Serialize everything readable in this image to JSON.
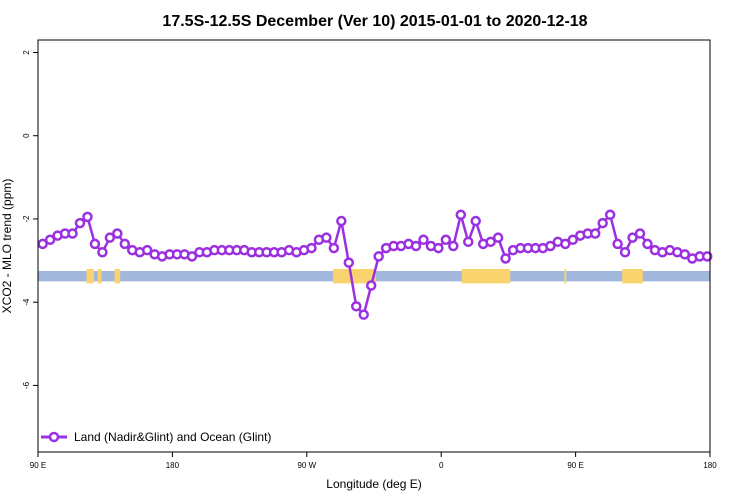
{
  "chart_data": {
    "type": "line",
    "title": "17.5S-12.5S December (Ver 10)   2015-01-01 to 2020-12-18",
    "xlabel": "Longitude (deg E)",
    "ylabel": "XCO2 - MLO trend (ppm)",
    "xlim": [
      90,
      450
    ],
    "ylim": [
      -7.6,
      2.3
    ],
    "x_ticks": [
      {
        "value": 90,
        "label": "90 E"
      },
      {
        "value": 162,
        "label": "180"
      },
      {
        "value": 234,
        "label": "90 W"
      },
      {
        "value": 306,
        "label": "0"
      },
      {
        "value": 378,
        "label": "90 E"
      },
      {
        "value": 450,
        "label": "180"
      }
    ],
    "y_ticks": [
      {
        "value": 2,
        "label": "2"
      },
      {
        "value": 0,
        "label": "0"
      },
      {
        "value": -2,
        "label": "-2"
      },
      {
        "value": -4,
        "label": "-4"
      },
      {
        "value": -6,
        "label": "-6"
      }
    ],
    "grid": false,
    "legend_position": "bottom-left",
    "series": [
      {
        "name": "Land (Nadir&Glint) and Ocean (Glint)",
        "color": "#9b30e0",
        "marker": "open-circle",
        "x": [
          92.5,
          96.5,
          100.5,
          104.5,
          108.5,
          112.5,
          116.5,
          120.5,
          124.5,
          128.5,
          132.5,
          136.5,
          140.5,
          144.5,
          148.5,
          152.5,
          156.5,
          160.5,
          164.5,
          168.5,
          172.5,
          176.5,
          180.5,
          184.5,
          188.5,
          192.5,
          196.5,
          200.5,
          204.5,
          208.5,
          212.5,
          216.5,
          220.5,
          224.5,
          228.5,
          232.5,
          236.5,
          240.5,
          244.5,
          248.5,
          252.5,
          256.5,
          260.5,
          264.5,
          268.5,
          272.5,
          276.5,
          280.5,
          284.5,
          288.5,
          292.5,
          296.5,
          300.5,
          304.5,
          308.5,
          312.5,
          316.5,
          320.5,
          324.5,
          328.5,
          332.5,
          336.5,
          340.5,
          344.5,
          348.5,
          352.5,
          356.5,
          360.5,
          364.5,
          368.5,
          372.5,
          376.5,
          380.5,
          384.5,
          388.5,
          392.5,
          396.5,
          400.5,
          404.5,
          408.5,
          412.5,
          416.5,
          420.5,
          424.5,
          428.5,
          432.5,
          436.5,
          440.5,
          444.5,
          448.5
        ],
        "y": [
          -2.6,
          -2.5,
          -2.4,
          -2.35,
          -2.35,
          -2.1,
          -1.95,
          -2.6,
          -2.8,
          -2.45,
          -2.35,
          -2.6,
          -2.75,
          -2.8,
          -2.75,
          -2.85,
          -2.9,
          -2.85,
          -2.85,
          -2.85,
          -2.9,
          -2.8,
          -2.8,
          -2.75,
          -2.75,
          -2.75,
          -2.75,
          -2.75,
          -2.8,
          -2.8,
          -2.8,
          -2.8,
          -2.8,
          -2.75,
          -2.8,
          -2.75,
          -2.7,
          -2.5,
          -2.45,
          -2.7,
          -2.05,
          -3.05,
          -4.1,
          -4.3,
          -3.6,
          -2.9,
          -2.7,
          -2.65,
          -2.65,
          -2.6,
          -2.65,
          -2.5,
          -2.65,
          -2.7,
          -2.5,
          -2.65,
          -1.9,
          -2.55,
          -2.05,
          -2.6,
          -2.55,
          -2.45,
          -2.95,
          -2.75,
          -2.7,
          -2.7,
          -2.7,
          -2.7,
          -2.65,
          -2.55,
          -2.6,
          -2.5,
          -2.4,
          -2.35,
          -2.35,
          -2.1,
          -1.9,
          -2.6,
          -2.8,
          -2.45,
          -2.35,
          -2.6,
          -2.75,
          -2.8,
          -2.75,
          -2.8,
          -2.85,
          -2.95,
          -2.9,
          -2.9
        ]
      }
    ],
    "band": {
      "y_range": [
        -3.5,
        -3.25
      ],
      "ocean_color": "#a2b7dc",
      "land_color": "#f9d36d",
      "land_segments": [
        [
          116,
          120
        ],
        [
          122,
          124
        ],
        [
          131,
          134
        ],
        [
          248,
          271
        ],
        [
          317,
          343
        ],
        [
          372,
          373
        ],
        [
          403,
          414
        ]
      ]
    }
  }
}
